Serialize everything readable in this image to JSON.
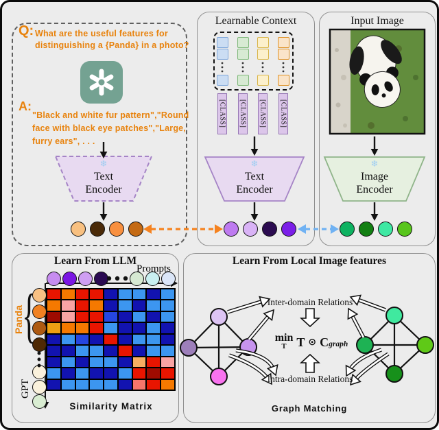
{
  "figure": {
    "background": "#ECECEC",
    "border_color": "#0A0A0A"
  },
  "qa_box": {
    "q_label": "Q:",
    "q_line1": "What are the useful features for",
    "q_line2": "distinguishing a {Panda} in a photo?",
    "a_label": "A:",
    "a_line1": "\"Black and white fur pattern\",\"Round",
    "a_line2": "face with black eye patches\",\"Large,",
    "a_line3": "furry ears\", . . .",
    "text_color": "#E8820C",
    "logo_icon": "chatgpt-logo",
    "logo_color": "#74A292",
    "encoder_line1": "Text",
    "encoder_line2": "Encoder",
    "frozen_icon": "❄",
    "dots": [
      "#F8C080",
      "#4A2A08",
      "#F89040",
      "#C46A14"
    ]
  },
  "learnable_context": {
    "title": "Learnable Context",
    "token_columns": [
      {
        "fill": "#CBDDF3",
        "stroke": "#7EA6D9"
      },
      {
        "fill": "#D7EAD3",
        "stroke": "#7FB87A"
      },
      {
        "fill": "#FCF0CC",
        "stroke": "#D9B64A"
      },
      {
        "fill": "#FAE4C9",
        "stroke": "#DE9023"
      }
    ],
    "class_label": "[CLASS]",
    "class_fill": "#DCC6EA",
    "class_stroke": "#9474B3",
    "encoder_line1": "Text",
    "encoder_line2": "Encoder",
    "frozen_icon": "❄",
    "dots": [
      "#BE7BF0",
      "#D9B3F6",
      "#2B0B50",
      "#7B1FE8"
    ]
  },
  "input_image": {
    "title": "Input Image",
    "image_desc": "panda-photo",
    "encoder_line1": "Image",
    "encoder_line2": "Encoder",
    "frozen_icon": "❄",
    "dots": [
      "#0EB261",
      "#127F12",
      "#3FE8A3",
      "#58C51C"
    ]
  },
  "cross_arrows": {
    "text_to_context_color": "#F5821F",
    "image_to_context_color": "#70B2F3"
  },
  "learn_from_llm": {
    "title": "Learn From LLM",
    "prompts_label": "Prompts",
    "panda_label": "Panda",
    "panda_color": "#E8820C",
    "gpt_label": "GPT",
    "caption": "Similarity Matrix",
    "top_dots": [
      "#C78CF0",
      "#7A17E3",
      "#CF9FF3",
      "#2A0A52",
      "gap",
      "#D6E9D2",
      "#C9EFF1",
      "#DBE6F8"
    ],
    "left_dots": [
      "#F8C184",
      "#F08122",
      "#AE5A12",
      "#4E2905",
      "gap",
      "#FAF1DC",
      "#FAF1DC",
      "#D9EDD2"
    ]
  },
  "chart_data": {
    "type": "heatmap",
    "title": "Similarity Matrix",
    "description": "9x9 similarity matrix between GPT prompt features (rows) and prompt features (columns); warm colors = high similarity, blues = low similarity",
    "rows": 9,
    "cols": 9,
    "palette": {
      "R": "#E81500",
      "O": "#F57900",
      "D": "#9E0B00",
      "P": "#F9A4A4",
      "G": "#EEA013",
      "S": "#F7756B",
      "Y": "#F6AE62",
      "N": "#1213B0",
      "B": "#3C96F0",
      "M": "#2646E0"
    },
    "cells": [
      "RORRNBBNB",
      "OPRONBNBB",
      "DPRRMNBNB",
      "GOORBNNBN",
      "NBMNRNBBN",
      "NNBBNRNBB",
      "NBNBBNYRP",
      "BNBNNBRDR",
      "NBBBBNSRO"
    ]
  },
  "graph_matching": {
    "title": "Learn From Local Image features",
    "inter_label": "Inter-domain Relations",
    "intra_label": "Intra-domain Relations",
    "caption": "Graph Matching",
    "formula_min": "min",
    "formula_min_sub": "T",
    "formula_t": "T",
    "formula_odot": "⊙",
    "formula_c": "C",
    "formula_c_sub": "graph",
    "text_graph_nodes": {
      "top": "#DDC4F4",
      "left": "#9D7FBA",
      "right": "#C693EE",
      "bottom": "#F973EF"
    },
    "image_graph_nodes": {
      "top": "#40E99F",
      "left": "#1EB254",
      "right": "#5FC917",
      "bottom": "#17901B"
    }
  }
}
